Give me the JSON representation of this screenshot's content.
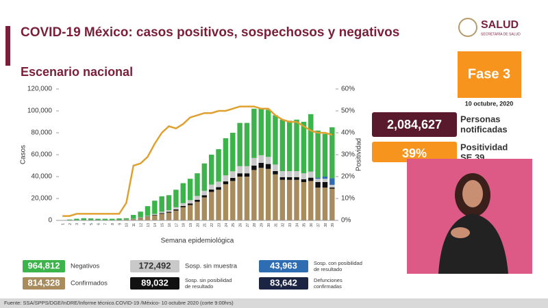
{
  "header": {
    "title": "COVID-19 México: casos positivos, sospechosos y negativos",
    "subtitle": "Escenario nacional",
    "logo": "SALUD",
    "logo_sub": "SECRETARÍA DE SALUD"
  },
  "panel": {
    "phase": "Fase 3",
    "date": "10 octubre, 2020",
    "notified_value": "2,084,627",
    "notified_label": [
      "Personas",
      "notificadas"
    ],
    "positivity_value": "39%",
    "positivity_label": "Positividad",
    "positivity_week": "SE 39"
  },
  "chart_data": {
    "type": "stacked-bar-line",
    "x_label": "Semana epidemiológica",
    "y_label": "Casos",
    "y2_label": "Positividad",
    "categories": [
      "1",
      "2",
      "3",
      "4",
      "5",
      "6",
      "7",
      "8",
      "9",
      "10",
      "11",
      "12",
      "13",
      "14",
      "15",
      "16",
      "17",
      "18",
      "19",
      "20",
      "21",
      "22",
      "23",
      "24",
      "25",
      "26",
      "27",
      "28",
      "29",
      "30",
      "31",
      "32",
      "33",
      "34",
      "35",
      "36",
      "37",
      "38",
      "39"
    ],
    "ylim": [
      0,
      120000
    ],
    "yticks": [
      {
        "value": 0,
        "label": "0"
      },
      {
        "value": 20000,
        "label": "20,000"
      },
      {
        "value": 40000,
        "label": "40,000"
      },
      {
        "value": 60000,
        "label": "60,000"
      },
      {
        "value": 80000,
        "label": "80,000"
      },
      {
        "value": 100000,
        "label": "100,000"
      },
      {
        "value": 120000,
        "label": "120,000"
      }
    ],
    "y2lim": [
      0,
      60
    ],
    "y2ticks": [
      {
        "value": 0,
        "label": "0%"
      },
      {
        "value": 10,
        "label": "10%"
      },
      {
        "value": 20,
        "label": "20%"
      },
      {
        "value": 30,
        "label": "30%"
      },
      {
        "value": 40,
        "label": "40%"
      },
      {
        "value": 50,
        "label": "50%"
      },
      {
        "value": 60,
        "label": "60%"
      }
    ],
    "series": [
      {
        "name": "Confirmados",
        "total": "814,328",
        "color": "#a88c5e",
        "values": [
          10,
          20,
          50,
          60,
          60,
          80,
          100,
          150,
          300,
          600,
          1200,
          2200,
          3200,
          4600,
          6000,
          7000,
          9000,
          12000,
          14000,
          17000,
          21000,
          26000,
          28000,
          33000,
          36000,
          40000,
          40000,
          46000,
          48000,
          47000,
          42000,
          37000,
          37000,
          37000,
          35000,
          36000,
          30000,
          30000,
          29000
        ]
      },
      {
        "name": "Sosp. sin posibilidad de resultado",
        "total": "89,032",
        "color": "#111111",
        "values": [
          0,
          0,
          0,
          0,
          0,
          0,
          0,
          0,
          0,
          50,
          100,
          200,
          300,
          500,
          700,
          800,
          1000,
          1200,
          1500,
          1800,
          2000,
          2200,
          2400,
          2600,
          2800,
          3000,
          3000,
          4000,
          4500,
          4500,
          3000,
          2500,
          2500,
          2500,
          2500,
          3000,
          5000,
          5000,
          1000
        ]
      },
      {
        "name": "Sosp. sin muestra",
        "total": "172,492",
        "color": "#c9c9c9",
        "values": [
          0,
          0,
          0,
          0,
          0,
          0,
          0,
          0,
          0,
          100,
          200,
          400,
          600,
          800,
          1200,
          1500,
          2000,
          2500,
          3000,
          3500,
          4000,
          4500,
          5000,
          5500,
          6000,
          6500,
          6500,
          7000,
          7000,
          6500,
          6000,
          5500,
          5500,
          5500,
          5500,
          5500,
          3000,
          3000,
          2500
        ]
      },
      {
        "name": "Sosp. con posibilidad de resultado",
        "total": "43,963",
        "color": "#2f6db3",
        "values": [
          0,
          0,
          0,
          0,
          0,
          0,
          0,
          0,
          0,
          0,
          0,
          0,
          0,
          0,
          0,
          0,
          0,
          0,
          0,
          0,
          0,
          0,
          0,
          0,
          0,
          0,
          0,
          0,
          0,
          0,
          0,
          0,
          0,
          0,
          0,
          0,
          1000,
          2000,
          6000
        ]
      },
      {
        "name": "Negativos",
        "total": "964,812",
        "color": "#3cb44b",
        "values": [
          290,
          780,
          1450,
          1940,
          1740,
          1420,
          1400,
          1350,
          1500,
          1250,
          3500,
          5200,
          8900,
          12100,
          14100,
          13700,
          16000,
          18300,
          19500,
          20700,
          25000,
          27300,
          29600,
          33900,
          35200,
          39500,
          39500,
          45000,
          42500,
          43000,
          45000,
          47000,
          46000,
          47000,
          47000,
          52500,
          43000,
          39000,
          46500
        ]
      },
      {
        "name": "Positividad",
        "axis": "y2",
        "color": "#e0a030",
        "values": [
          2,
          2,
          3,
          3,
          3,
          3,
          3,
          3,
          3,
          8,
          25,
          26,
          29,
          35,
          40,
          43,
          42,
          44,
          47,
          48,
          49,
          49,
          50,
          50,
          51,
          52,
          52,
          52,
          51,
          51,
          48,
          46,
          45,
          45,
          43,
          41,
          40,
          40,
          39
        ]
      }
    ],
    "extra_indicator": {
      "name": "Defunciones confirmadas",
      "total": "83,642",
      "color": "#1c2444"
    }
  },
  "footer": {
    "source": "Fuente: SSA/SPPS/DGE/InDRE/Informe técnico.COVID-19 /México- 10 octubre 2020 (corte 9:00hrs)"
  }
}
